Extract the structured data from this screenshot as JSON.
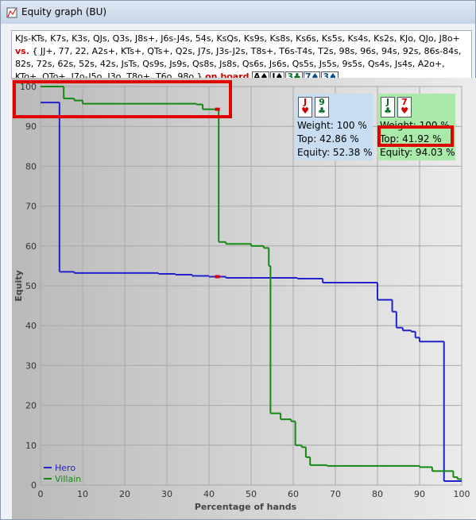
{
  "window_title": "Equity graph (BU)",
  "ranges": {
    "hero_range": "KJs-KTs, K7s, K3s, QJs, Q3s, J8s+, J6s-J4s, 54s, KsQs, Ks9s, Ks8s, Ks6s, Ks5s, Ks4s, Ks2s, KJo, QJo, J8o+",
    "vs_label": "vs.",
    "villain_range": "{ JJ+, 77, 22, A2s+, KTs+, QTs+, Q2s, J7s, J3s-J2s, T8s+, T6s-T4s, T2s, 98s, 96s, 94s, 92s, 86s-84s, 82s, 72s, 62s, 52s, 42s, JsTs, Qs9s, Js9s, Qs8s, Js8s, Qs6s, Js6s, Qs5s, Js5s, 9s5s, Qs4s, Js4s, A2o+, KTo+, QTo+, J7o-J5o, J3o, T8o+, T6o, 98o }",
    "board_label": "on board",
    "board": [
      {
        "label": "A♠",
        "color": "#000"
      },
      {
        "label": "J♠",
        "color": "#000"
      },
      {
        "label": "3♣",
        "color": "#0a6e2a"
      },
      {
        "label": "7♠",
        "color": "#0a4e8e"
      },
      {
        "label": "3♠",
        "color": "#0a4e8e"
      }
    ]
  },
  "chart_data": {
    "type": "step",
    "x_label": "Percentage of hands",
    "y_label": "Equity",
    "xlim": [
      0,
      100
    ],
    "xticks": [
      0,
      10,
      20,
      30,
      40,
      50,
      60,
      70,
      80,
      90,
      100
    ],
    "ylim": [
      0,
      100
    ],
    "yticks": [
      0,
      10,
      20,
      30,
      40,
      50,
      60,
      70,
      80,
      90,
      100
    ],
    "grid": true,
    "legend": "lower left",
    "marker_x": 42,
    "marker_color": "#e00000",
    "series": [
      {
        "name": "Hero",
        "color": "#2222cc",
        "x": [
          0,
          4.5,
          8,
          28,
          32,
          36,
          40,
          44,
          61,
          67,
          80,
          83.5,
          84.5,
          86,
          88,
          89,
          90,
          95.8
        ],
        "values": [
          96,
          53.5,
          53.2,
          53,
          52.8,
          52.5,
          52.3,
          52,
          51.8,
          50.8,
          46.5,
          43.5,
          39.5,
          38.8,
          38.5,
          37,
          36,
          1
        ]
      },
      {
        "name": "Villain",
        "color": "#138a13",
        "x": [
          0,
          5.5,
          8,
          10,
          37,
          38.5,
          42.3,
          44,
          50,
          53,
          54.2,
          54.6,
          57,
          59.5,
          60.5,
          62,
          63,
          64,
          68,
          90,
          93,
          98,
          99
        ],
        "values": [
          100,
          97,
          96.5,
          95.7,
          95.5,
          94.3,
          61,
          60.5,
          60,
          59.5,
          55,
          18,
          16.5,
          16,
          10,
          9.5,
          7,
          5,
          4.8,
          4.5,
          3.5,
          2,
          1.5
        ]
      }
    ]
  },
  "panels": [
    {
      "cards": [
        {
          "label": "J",
          "suit": "♥",
          "color": "#d00000"
        },
        {
          "label": "9",
          "suit": "♣",
          "color": "#0a6e2a"
        }
      ],
      "weight": "Weight: 100 %",
      "top": "Top: 42.86 %",
      "equity": "Equity: 52.38 %",
      "background": "#c9ddf2"
    },
    {
      "cards": [
        {
          "label": "J",
          "suit": "♣",
          "color": "#0a6e2a"
        },
        {
          "label": "7",
          "suit": "♥",
          "color": "#d00000"
        }
      ],
      "weight": "Weight: 100 %",
      "top": "Top: 41.92 %",
      "equity": "Equity: 94.03 %",
      "background": "#a9e9a9"
    }
  ]
}
